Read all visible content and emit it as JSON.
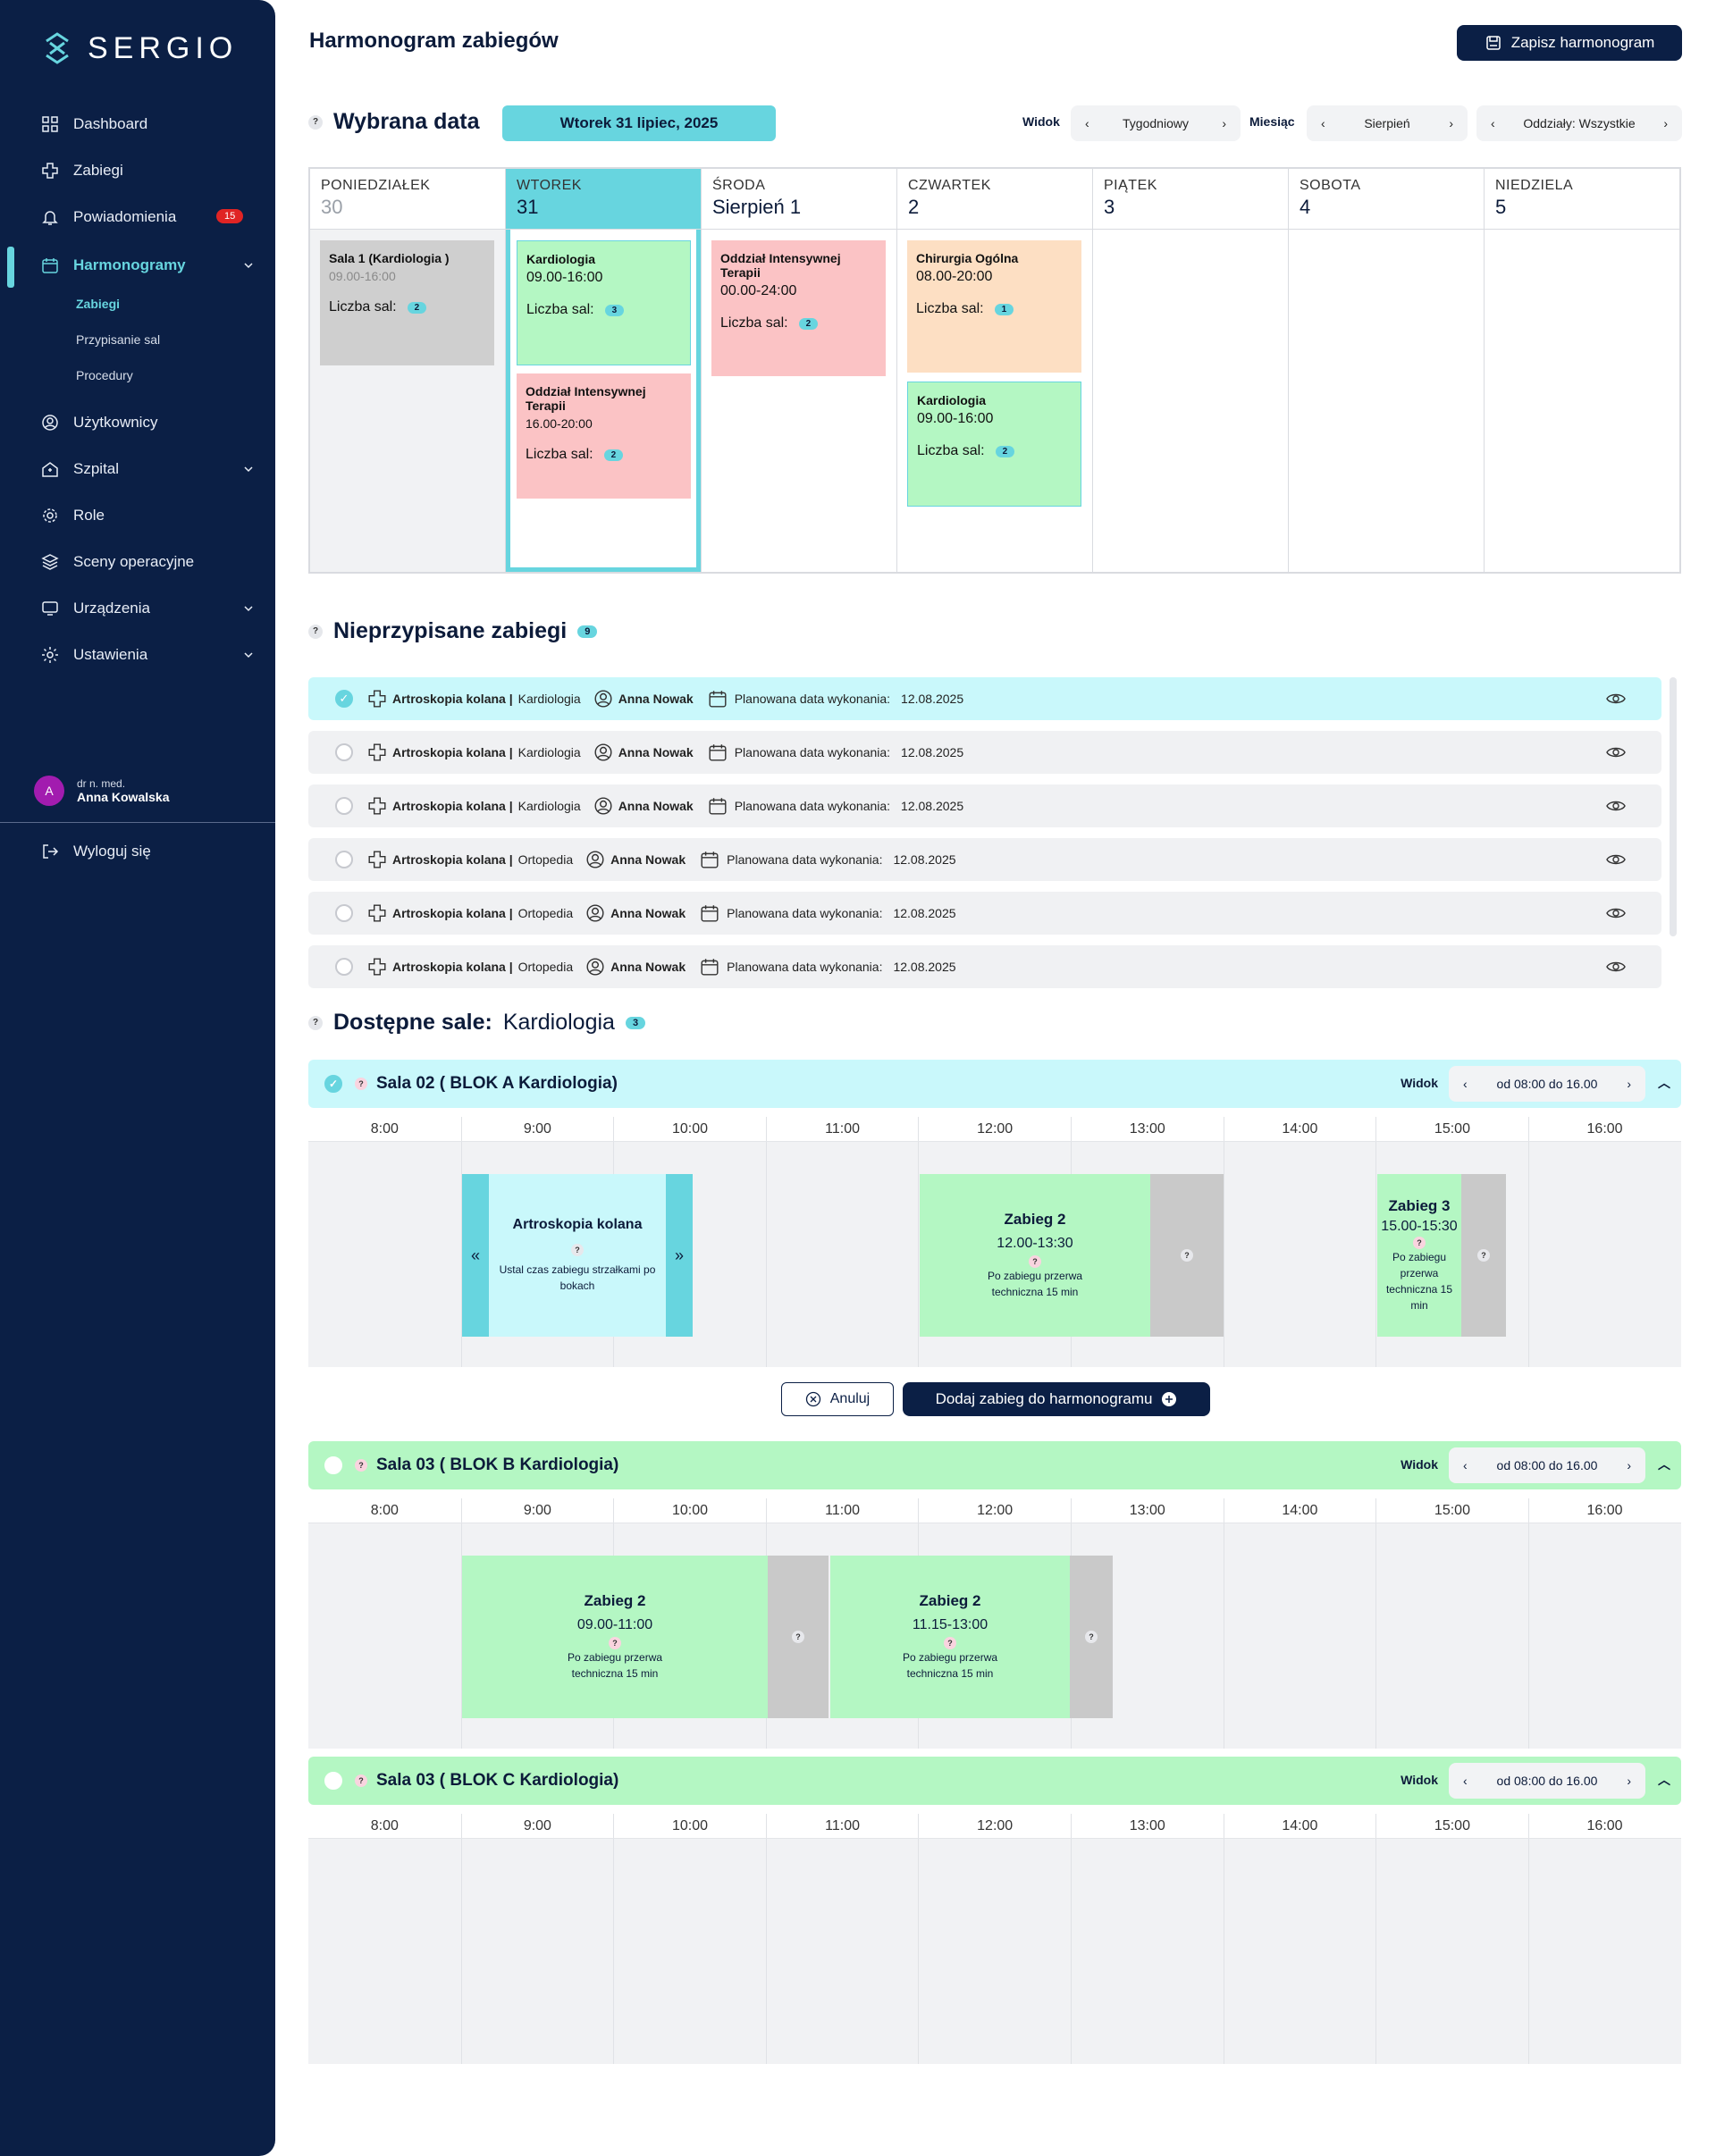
{
  "app": {
    "brand": "SERGIO"
  },
  "colors": {
    "sidebar": "#0b1f45",
    "accent": "#67d5df",
    "green": "#b4f7c3",
    "pink": "#fbc3c5",
    "orange": "#fddfc3",
    "gray": "#cfcfcf",
    "badge": "#e02424"
  },
  "sidebar": {
    "items": [
      {
        "label": "Dashboard",
        "icon": "grid-icon"
      },
      {
        "label": "Zabiegi",
        "icon": "medical-cross-icon"
      },
      {
        "label": "Powiadomienia",
        "icon": "bell-icon",
        "badge": "15"
      },
      {
        "label": "Harmonogramy",
        "icon": "calendar-icon"
      },
      {
        "label": "Użytkownicy",
        "icon": "user-icon"
      },
      {
        "label": "Szpital",
        "icon": "hospital-icon"
      },
      {
        "label": "Role",
        "icon": "role-gear-icon"
      },
      {
        "label": "Sceny operacyjne",
        "icon": "layers-icon"
      },
      {
        "label": "Urządzenia",
        "icon": "device-icon"
      },
      {
        "label": "Ustawienia",
        "icon": "settings-icon"
      }
    ],
    "subitems": [
      "Zabiegi",
      "Przypisanie sal",
      "Procedury"
    ],
    "user": {
      "avatar": "A",
      "title": "dr n. med.",
      "name": "Anna Kowalska"
    },
    "logout": "Wyloguj się"
  },
  "header": {
    "title": "Harmonogram zabiegów",
    "save_button": "Zapisz harmonogram"
  },
  "date_bar": {
    "label": "Wybrana data",
    "selected": "Wtorek 31 lipiec, 2025",
    "view_label": "Widok",
    "view_value": "Tygodniowy",
    "month_label": "Miesiąc",
    "month_value": "Sierpień",
    "depts": "Oddziały: Wszystkie"
  },
  "week": [
    {
      "name": "PONIEDZIAŁEK",
      "num": "30"
    },
    {
      "name": "WTOREK",
      "num": "31"
    },
    {
      "name": "ŚRODA",
      "num": "Sierpień 1"
    },
    {
      "name": "CZWARTEK",
      "num": "2"
    },
    {
      "name": "PIĄTEK",
      "num": "3"
    },
    {
      "name": "SOBOTA",
      "num": "4"
    },
    {
      "name": "NIEDZIELA",
      "num": "5"
    }
  ],
  "cards": [
    {
      "title": "Sala 1 (Kardiologia )",
      "time": "09.00-16:00",
      "rooms_label": "Liczba sal:",
      "rooms": "2"
    },
    {
      "title": "Kardiologia",
      "time": "09.00-16:00",
      "rooms_label": "Liczba sal:",
      "rooms": "3"
    },
    {
      "title": "Oddział Intensywnej Terapii",
      "time": "16.00-20:00",
      "rooms_label": "Liczba sal:",
      "rooms": "2"
    },
    {
      "title": "Oddział Intensywnej Terapii",
      "time": "00.00-24:00",
      "rooms_label": "Liczba sal:",
      "rooms": "2"
    },
    {
      "title": "Chirurgia Ogólna",
      "time": "08.00-20:00",
      "rooms_label": "Liczba sal:",
      "rooms": "1"
    },
    {
      "title": "Kardiologia",
      "time": "09.00-16:00",
      "rooms_label": "Liczba sal:",
      "rooms": "2"
    }
  ],
  "unassigned": {
    "title": "Nieprzypisane zabiegi",
    "count": "9",
    "rows": [
      {
        "proc": "Artroskopia kolana |",
        "dept": "Kardiologia",
        "doctor": "Anna Nowak",
        "date_label": "Planowana data wykonania:",
        "date": "12.08.2025"
      },
      {
        "proc": "Artroskopia kolana |",
        "dept": "Kardiologia",
        "doctor": "Anna Nowak",
        "date_label": "Planowana data wykonania:",
        "date": "12.08.2025"
      },
      {
        "proc": "Artroskopia kolana |",
        "dept": "Kardiologia",
        "doctor": "Anna Nowak",
        "date_label": "Planowana data wykonania:",
        "date": "12.08.2025"
      },
      {
        "proc": "Artroskopia kolana |",
        "dept": "Ortopedia",
        "doctor": "Anna Nowak",
        "date_label": "Planowana data wykonania:",
        "date": "12.08.2025"
      },
      {
        "proc": "Artroskopia kolana |",
        "dept": "Ortopedia",
        "doctor": "Anna Nowak",
        "date_label": "Planowana data wykonania:",
        "date": "12.08.2025"
      },
      {
        "proc": "Artroskopia kolana |",
        "dept": "Ortopedia",
        "doctor": "Anna Nowak",
        "date_label": "Planowana data wykonania:",
        "date": "12.08.2025"
      }
    ]
  },
  "rooms": {
    "title": "Dostępne sale:",
    "dept": "Kardiologia",
    "count": "3",
    "hours": [
      "8:00",
      "9:00",
      "10:00",
      "11:00",
      "12:00",
      "13:00",
      "14:00",
      "15:00",
      "16:00"
    ],
    "view_label": "Widok",
    "range": "od 08:00 do 16.00",
    "sala1": "Sala 02 ( BLOK A Kardiologia)",
    "sala2": "Sala 03 ( BLOK B Kardiologia)",
    "sala3": "Sala 03 ( BLOK C  Kardiologia)",
    "drag": {
      "name": "Artroskopia kolana",
      "hint": "Ustal czas zabiegu strzałkami po bokach"
    },
    "s1_blocks": [
      {
        "name": "Zabieg 2",
        "time": "12.00-13:30",
        "note": "Po zabiegu przerwa techniczna 15 min"
      },
      {
        "name": "Zabieg 3",
        "time": "15.00-15:30",
        "note": "Po zabiegu przerwa techniczna 15 min"
      }
    ],
    "s2_blocks": [
      {
        "name": "Zabieg 2",
        "time": "09.00-11:00",
        "note": "Po zabiegu przerwa techniczna 15 min"
      },
      {
        "name": "Zabieg 2",
        "time": "11.15-13:00",
        "note": "Po zabiegu przerwa techniczna 15 min"
      }
    ],
    "cancel": "Anuluj",
    "add": "Dodaj zabieg do harmonogramu"
  }
}
